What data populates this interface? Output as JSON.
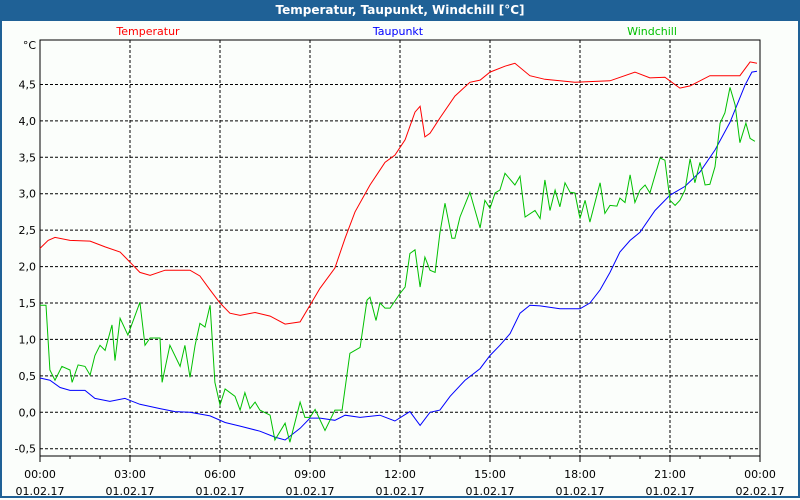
{
  "window": {
    "title": "Temperatur, Taupunkt, Windchill [°C]"
  },
  "chart_data": {
    "type": "line",
    "title": "Temperatur, Taupunkt, Windchill [°C]",
    "ylabel": "°C",
    "xlabel": "",
    "x_unit": "hours since 01.02.17 00:00",
    "xlim": [
      0,
      24
    ],
    "ylim": [
      -0.6,
      5.11
    ],
    "grid": true,
    "legend_placement": "top",
    "y_ticks": [
      -0.5,
      0.0,
      0.5,
      1.0,
      1.5,
      2.0,
      2.5,
      3.0,
      3.5,
      4.0,
      4.5
    ],
    "y_tick_labels": [
      "-0,5",
      "0,0",
      "0,5",
      "1,0",
      "1,5",
      "2,0",
      "2,5",
      "3,0",
      "3,5",
      "4,0",
      "4,5"
    ],
    "x_ticks": [
      {
        "hour": 0,
        "time": "00:00",
        "date": "01.02.17"
      },
      {
        "hour": 3,
        "time": "03:00",
        "date": "01.02.17"
      },
      {
        "hour": 6,
        "time": "06:00",
        "date": "01.02.17"
      },
      {
        "hour": 9,
        "time": "09:00",
        "date": "01.02.17"
      },
      {
        "hour": 12,
        "time": "12:00",
        "date": "01.02.17"
      },
      {
        "hour": 15,
        "time": "15:00",
        "date": "01.02.17"
      },
      {
        "hour": 18,
        "time": "18:00",
        "date": "01.02.17"
      },
      {
        "hour": 21,
        "time": "21:00",
        "date": "01.02.17"
      },
      {
        "hour": 24,
        "time": "00:00",
        "date": "02.02.17"
      }
    ],
    "series": [
      {
        "name": "Temperatur",
        "color": "#ff0000",
        "points": [
          [
            0,
            2.25
          ],
          [
            0.27,
            2.36
          ],
          [
            0.5,
            2.4
          ],
          [
            1,
            2.36
          ],
          [
            1.67,
            2.35
          ],
          [
            2.17,
            2.27
          ],
          [
            2.67,
            2.2
          ],
          [
            3,
            2.06
          ],
          [
            3.33,
            1.92
          ],
          [
            3.67,
            1.88
          ],
          [
            4.17,
            1.95
          ],
          [
            5,
            1.95
          ],
          [
            5.33,
            1.87
          ],
          [
            5.67,
            1.68
          ],
          [
            6,
            1.5
          ],
          [
            6.33,
            1.36
          ],
          [
            6.67,
            1.33
          ],
          [
            7.17,
            1.37
          ],
          [
            7.67,
            1.32
          ],
          [
            8.17,
            1.21
          ],
          [
            8.67,
            1.24
          ],
          [
            9,
            1.47
          ],
          [
            9.33,
            1.7
          ],
          [
            9.83,
            1.98
          ],
          [
            10.17,
            2.39
          ],
          [
            10.5,
            2.75
          ],
          [
            11,
            3.12
          ],
          [
            11.5,
            3.43
          ],
          [
            11.83,
            3.53
          ],
          [
            12.17,
            3.74
          ],
          [
            12.5,
            4.12
          ],
          [
            12.67,
            4.2
          ],
          [
            12.83,
            3.78
          ],
          [
            13,
            3.83
          ],
          [
            13.33,
            4.04
          ],
          [
            13.83,
            4.34
          ],
          [
            14.33,
            4.53
          ],
          [
            14.67,
            4.56
          ],
          [
            15,
            4.67
          ],
          [
            15.5,
            4.75
          ],
          [
            15.83,
            4.79
          ],
          [
            16.33,
            4.62
          ],
          [
            16.83,
            4.57
          ],
          [
            17.83,
            4.53
          ],
          [
            19,
            4.55
          ],
          [
            19.83,
            4.67
          ],
          [
            20.33,
            4.59
          ],
          [
            20.83,
            4.6
          ],
          [
            21.33,
            4.45
          ],
          [
            21.67,
            4.48
          ],
          [
            22.33,
            4.62
          ],
          [
            23.33,
            4.62
          ],
          [
            23.67,
            4.81
          ],
          [
            23.9,
            4.79
          ]
        ]
      },
      {
        "name": "Taupunkt",
        "color": "#0000ff",
        "points": [
          [
            0,
            0.47
          ],
          [
            0.33,
            0.44
          ],
          [
            0.67,
            0.34
          ],
          [
            1,
            0.3
          ],
          [
            1.5,
            0.3
          ],
          [
            1.83,
            0.19
          ],
          [
            2.33,
            0.15
          ],
          [
            2.83,
            0.19
          ],
          [
            3.33,
            0.11
          ],
          [
            4,
            0.05
          ],
          [
            4.5,
            0.01
          ],
          [
            5,
            0
          ],
          [
            5.67,
            -0.05
          ],
          [
            6.17,
            -0.14
          ],
          [
            6.67,
            -0.19
          ],
          [
            7.33,
            -0.26
          ],
          [
            7.83,
            -0.34
          ],
          [
            8.17,
            -0.38
          ],
          [
            8.67,
            -0.22
          ],
          [
            9,
            -0.08
          ],
          [
            9.33,
            -0.08
          ],
          [
            9.83,
            -0.11
          ],
          [
            10.17,
            -0.04
          ],
          [
            10.67,
            -0.07
          ],
          [
            11.33,
            -0.04
          ],
          [
            11.83,
            -0.12
          ],
          [
            12.33,
            0.01
          ],
          [
            12.67,
            -0.18
          ],
          [
            13,
            0
          ],
          [
            13.33,
            0.03
          ],
          [
            13.67,
            0.22
          ],
          [
            14.17,
            0.44
          ],
          [
            14.67,
            0.6
          ],
          [
            15,
            0.78
          ],
          [
            15.33,
            0.92
          ],
          [
            15.67,
            1.08
          ],
          [
            16,
            1.36
          ],
          [
            16.33,
            1.47
          ],
          [
            16.67,
            1.46
          ],
          [
            17.33,
            1.42
          ],
          [
            18,
            1.42
          ],
          [
            18.33,
            1.5
          ],
          [
            18.67,
            1.68
          ],
          [
            19,
            1.92
          ],
          [
            19.33,
            2.2
          ],
          [
            19.67,
            2.36
          ],
          [
            20,
            2.47
          ],
          [
            20.5,
            2.77
          ],
          [
            21,
            2.98
          ],
          [
            21.5,
            3.1
          ],
          [
            22,
            3.3
          ],
          [
            22.5,
            3.6
          ],
          [
            23,
            3.98
          ],
          [
            23.5,
            4.49
          ],
          [
            23.73,
            4.67
          ],
          [
            23.9,
            4.68
          ]
        ]
      },
      {
        "name": "Windchill",
        "color": "#00c000",
        "points": [
          [
            0,
            1.47
          ],
          [
            0.2,
            1.47
          ],
          [
            0.33,
            0.58
          ],
          [
            0.5,
            0.44
          ],
          [
            0.73,
            0.63
          ],
          [
            1,
            0.58
          ],
          [
            1.07,
            0.41
          ],
          [
            1.27,
            0.65
          ],
          [
            1.5,
            0.63
          ],
          [
            1.67,
            0.51
          ],
          [
            1.83,
            0.78
          ],
          [
            2,
            0.92
          ],
          [
            2.17,
            0.85
          ],
          [
            2.4,
            1.2
          ],
          [
            2.5,
            0.71
          ],
          [
            2.67,
            1.29
          ],
          [
            2.93,
            1.06
          ],
          [
            3.33,
            1.51
          ],
          [
            3.5,
            0.92
          ],
          [
            3.67,
            1.02
          ],
          [
            4,
            1.02
          ],
          [
            4.07,
            0.41
          ],
          [
            4.33,
            0.92
          ],
          [
            4.67,
            0.63
          ],
          [
            4.83,
            0.92
          ],
          [
            5,
            0.48
          ],
          [
            5.17,
            0.92
          ],
          [
            5.33,
            1.22
          ],
          [
            5.5,
            1.17
          ],
          [
            5.67,
            1.47
          ],
          [
            5.83,
            0.41
          ],
          [
            6,
            0.1
          ],
          [
            6.17,
            0.32
          ],
          [
            6.5,
            0.22
          ],
          [
            6.67,
            0.03
          ],
          [
            6.83,
            0.27
          ],
          [
            7,
            0.05
          ],
          [
            7.17,
            0.14
          ],
          [
            7.33,
            0.03
          ],
          [
            7.67,
            -0.04
          ],
          [
            7.83,
            -0.38
          ],
          [
            8.17,
            -0.15
          ],
          [
            8.33,
            -0.41
          ],
          [
            8.67,
            0.14
          ],
          [
            8.83,
            -0.07
          ],
          [
            9,
            -0.07
          ],
          [
            9.17,
            0.04
          ],
          [
            9.5,
            -0.25
          ],
          [
            9.83,
            0.03
          ],
          [
            10.07,
            0.03
          ],
          [
            10.33,
            0.81
          ],
          [
            10.67,
            0.89
          ],
          [
            10.9,
            1.54
          ],
          [
            11,
            1.58
          ],
          [
            11.2,
            1.26
          ],
          [
            11.33,
            1.5
          ],
          [
            11.5,
            1.43
          ],
          [
            11.67,
            1.43
          ],
          [
            12,
            1.63
          ],
          [
            12.17,
            1.72
          ],
          [
            12.33,
            2.18
          ],
          [
            12.5,
            2.23
          ],
          [
            12.67,
            1.72
          ],
          [
            12.83,
            2.13
          ],
          [
            13,
            1.95
          ],
          [
            13.17,
            1.92
          ],
          [
            13.33,
            2.46
          ],
          [
            13.5,
            2.87
          ],
          [
            13.73,
            2.39
          ],
          [
            13.83,
            2.39
          ],
          [
            14,
            2.68
          ],
          [
            14.33,
            3.02
          ],
          [
            14.67,
            2.53
          ],
          [
            14.83,
            2.91
          ],
          [
            15,
            2.8
          ],
          [
            15.17,
            3.01
          ],
          [
            15.33,
            3.05
          ],
          [
            15.5,
            3.28
          ],
          [
            15.83,
            3.12
          ],
          [
            16,
            3.24
          ],
          [
            16.17,
            2.68
          ],
          [
            16.5,
            2.77
          ],
          [
            16.67,
            2.66
          ],
          [
            16.83,
            3.19
          ],
          [
            17,
            2.77
          ],
          [
            17.17,
            3.05
          ],
          [
            17.33,
            2.82
          ],
          [
            17.5,
            3.15
          ],
          [
            17.67,
            3.02
          ],
          [
            17.83,
            3.01
          ],
          [
            18,
            2.66
          ],
          [
            18.17,
            2.91
          ],
          [
            18.33,
            2.61
          ],
          [
            18.67,
            3.15
          ],
          [
            18.83,
            2.73
          ],
          [
            19,
            2.84
          ],
          [
            19.23,
            2.83
          ],
          [
            19.33,
            2.94
          ],
          [
            19.5,
            2.88
          ],
          [
            19.67,
            3.26
          ],
          [
            19.83,
            2.88
          ],
          [
            20,
            3.05
          ],
          [
            20.17,
            3.12
          ],
          [
            20.33,
            3.01
          ],
          [
            20.67,
            3.49
          ],
          [
            20.83,
            3.46
          ],
          [
            21,
            2.91
          ],
          [
            21.17,
            2.84
          ],
          [
            21.33,
            2.91
          ],
          [
            21.5,
            3.05
          ],
          [
            21.67,
            3.48
          ],
          [
            21.83,
            3.15
          ],
          [
            22,
            3.43
          ],
          [
            22.17,
            3.12
          ],
          [
            22.33,
            3.13
          ],
          [
            22.5,
            3.37
          ],
          [
            22.67,
            3.97
          ],
          [
            22.83,
            4.11
          ],
          [
            23,
            4.46
          ],
          [
            23.17,
            4.22
          ],
          [
            23.33,
            3.7
          ],
          [
            23.53,
            3.97
          ],
          [
            23.67,
            3.76
          ],
          [
            23.83,
            3.72
          ]
        ]
      }
    ]
  }
}
